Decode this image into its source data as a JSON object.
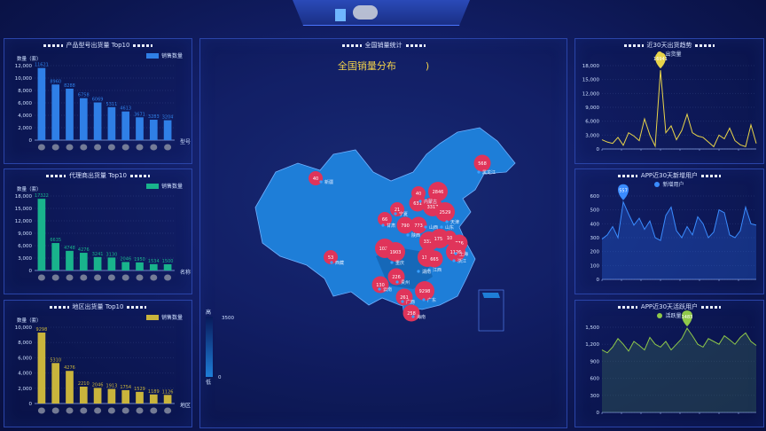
{
  "header": {
    "title": "",
    "corner_text": ""
  },
  "panels": {
    "product_top10": {
      "title": "产品型号出货量 Top10",
      "legend": "销售数量",
      "ylabel": "数量（套）",
      "xlabel": "型号"
    },
    "agent_top10": {
      "title": "代理商出货量 Top10",
      "legend": "销售数量",
      "ylabel": "数量（套）",
      "xlabel": "名称"
    },
    "region_top10": {
      "title": "地区出货量 Top10",
      "legend": "销售数量",
      "ylabel": "数量（套）",
      "xlabel": "地区"
    },
    "national": {
      "title": "全国销量统计",
      "map_title": "全国销量分布",
      "map_title_suffix": ")",
      "scale_high": "高",
      "scale_low": "低",
      "scale_max": "3500",
      "scale_min": "0"
    },
    "last30": {
      "title": "近30天出货趋势",
      "legend": "出货量"
    },
    "app_new": {
      "title": "APP近30天新增用户",
      "legend": "新增用户"
    },
    "app_active": {
      "title": "APP近30天活跃用户",
      "legend": "活跃量"
    }
  },
  "colors": {
    "blue_bar": "#2f7fe6",
    "teal_bar": "#19b38c",
    "gold_bar": "#c9b43c",
    "yellow_line": "#e8d44a",
    "blue_line": "#3a8cff",
    "green_line": "#8fc84a",
    "marker_red": "#e0345a",
    "map_fill": "#1e7ed8"
  },
  "chart_data": [
    {
      "id": "product_top10",
      "type": "bar",
      "categories": [
        "",
        "",
        "",
        "",
        "",
        "",
        "",
        "",
        "",
        ""
      ],
      "values": [
        11621,
        8960,
        8288,
        6758,
        6069,
        5311,
        4613,
        3671,
        3283,
        3204
      ],
      "value_labels": [
        "11621",
        "8960",
        "8288",
        "6758",
        "6069",
        "5311",
        "4613",
        "3671",
        "3283",
        "3204"
      ],
      "ylim": [
        0,
        12000
      ],
      "yticks": [
        "0",
        "2,000",
        "4,000",
        "6,000",
        "8,000",
        "10,000",
        "12,000"
      ],
      "xtick_labels": [
        "1",
        "0",
        "0",
        "0",
        "0",
        "0",
        "0",
        "0",
        "0",
        "0"
      ]
    },
    {
      "id": "agent_top10",
      "type": "bar",
      "categories": [
        "",
        "",
        "",
        "",
        "",
        "",
        "",
        "",
        "",
        ""
      ],
      "values": [
        17322,
        6635,
        4748,
        4276,
        3241,
        3130,
        2046,
        1950,
        1534,
        1500
      ],
      "value_labels": [
        "17322",
        "6635",
        "4748",
        "4276",
        "3241",
        "3130",
        "2046",
        "1950",
        "1534",
        "1500"
      ],
      "ylim": [
        0,
        18000
      ],
      "yticks": [
        "0",
        "3,000",
        "6,000",
        "9,000",
        "12,000",
        "15,000",
        "18,000"
      ]
    },
    {
      "id": "region_top10",
      "type": "bar",
      "categories": [
        "",
        "",
        "",
        "",
        "",
        "",
        "",
        "",
        "",
        ""
      ],
      "values": [
        9298,
        5310,
        4276,
        2210,
        2046,
        1913,
        1754,
        1529,
        1189,
        1126
      ],
      "value_labels": [
        "9298",
        "5310",
        "4276",
        "2210",
        "2046",
        "1913",
        "1754",
        "1529",
        "1189",
        "1126"
      ],
      "ylim": [
        0,
        10000
      ],
      "yticks": [
        "0",
        "2,000",
        "4,000",
        "6,000",
        "8,000",
        "10,000"
      ]
    },
    {
      "id": "last30",
      "type": "line",
      "values": [
        2000,
        1500,
        1200,
        2500,
        800,
        3500,
        2800,
        1800,
        6500,
        3000,
        600,
        17000,
        3500,
        5000,
        2000,
        4000,
        7500,
        3500,
        2800,
        2500,
        1500,
        500,
        3000,
        2200,
        4500,
        1800,
        900,
        500,
        5200,
        1200
      ],
      "peak_label": "16941",
      "ylim": [
        0,
        18000
      ],
      "yticks": [
        "0",
        "3,000",
        "6,000",
        "9,000",
        "12,000",
        "15,000",
        "18,000"
      ]
    },
    {
      "id": "app_new",
      "type": "area",
      "values": [
        290,
        320,
        380,
        300,
        557,
        470,
        390,
        440,
        360,
        420,
        300,
        280,
        460,
        520,
        350,
        300,
        380,
        320,
        450,
        400,
        300,
        340,
        500,
        480,
        320,
        300,
        350,
        520,
        400,
        390
      ],
      "peak_label": "557",
      "ylim": [
        0,
        600
      ],
      "yticks": [
        "0",
        "100",
        "200",
        "300",
        "400",
        "500",
        "600"
      ]
    },
    {
      "id": "app_active",
      "type": "area",
      "values": [
        1100,
        1050,
        1150,
        1300,
        1200,
        1080,
        1250,
        1180,
        1100,
        1320,
        1200,
        1150,
        1250,
        1100,
        1200,
        1300,
        1483,
        1350,
        1200,
        1150,
        1300,
        1250,
        1200,
        1350,
        1280,
        1200,
        1320,
        1400,
        1250,
        1180
      ],
      "peak_label": "1483",
      "ylim": [
        0,
        1500
      ],
      "yticks": [
        "0",
        "300",
        "600",
        "900",
        "1,200",
        "1,500"
      ]
    }
  ],
  "map": {
    "markers": [
      {
        "label": "568",
        "province": "黑龙江"
      },
      {
        "label": "40",
        "province": "新疆"
      },
      {
        "label": "2846",
        "province": "北京"
      },
      {
        "label": "40",
        "province": "内蒙古"
      },
      {
        "label": "21",
        "province": "宁夏"
      },
      {
        "label": "66",
        "province": "甘肃"
      },
      {
        "label": "790",
        "province": "陕西"
      },
      {
        "label": "631",
        "province": "天津"
      },
      {
        "label": "3317",
        "province": "河北"
      },
      {
        "label": "2529",
        "province": "河北"
      },
      {
        "label": "773",
        "province": "山东"
      },
      {
        "label": "1022",
        "province": "四川"
      },
      {
        "label": "1903",
        "province": "重庆"
      },
      {
        "label": "3310",
        "province": "湖北"
      },
      {
        "label": "1754",
        "province": "安徽"
      },
      {
        "label": "10",
        "province": "江苏"
      },
      {
        "label": "776",
        "province": "上海"
      },
      {
        "label": "1126",
        "province": "浙江"
      },
      {
        "label": "1189",
        "province": "湖南"
      },
      {
        "label": "665",
        "province": "江西"
      },
      {
        "label": "53",
        "province": "西藏"
      },
      {
        "label": "226",
        "province": "贵州"
      },
      {
        "label": "130",
        "province": "云南"
      },
      {
        "label": "261",
        "province": "广西"
      },
      {
        "label": "9298",
        "province": "广东"
      },
      {
        "label": "258",
        "province": "海南"
      }
    ],
    "place_names": [
      "黑龙江",
      "新疆",
      "内蒙古",
      "宁夏",
      "甘肃",
      "陕西",
      "山东",
      "西藏",
      "重庆",
      "贵州",
      "云南",
      "广西",
      "广东",
      "海南",
      "江西",
      "上海",
      "浙江",
      "湖南",
      "天津",
      "山西"
    ]
  }
}
